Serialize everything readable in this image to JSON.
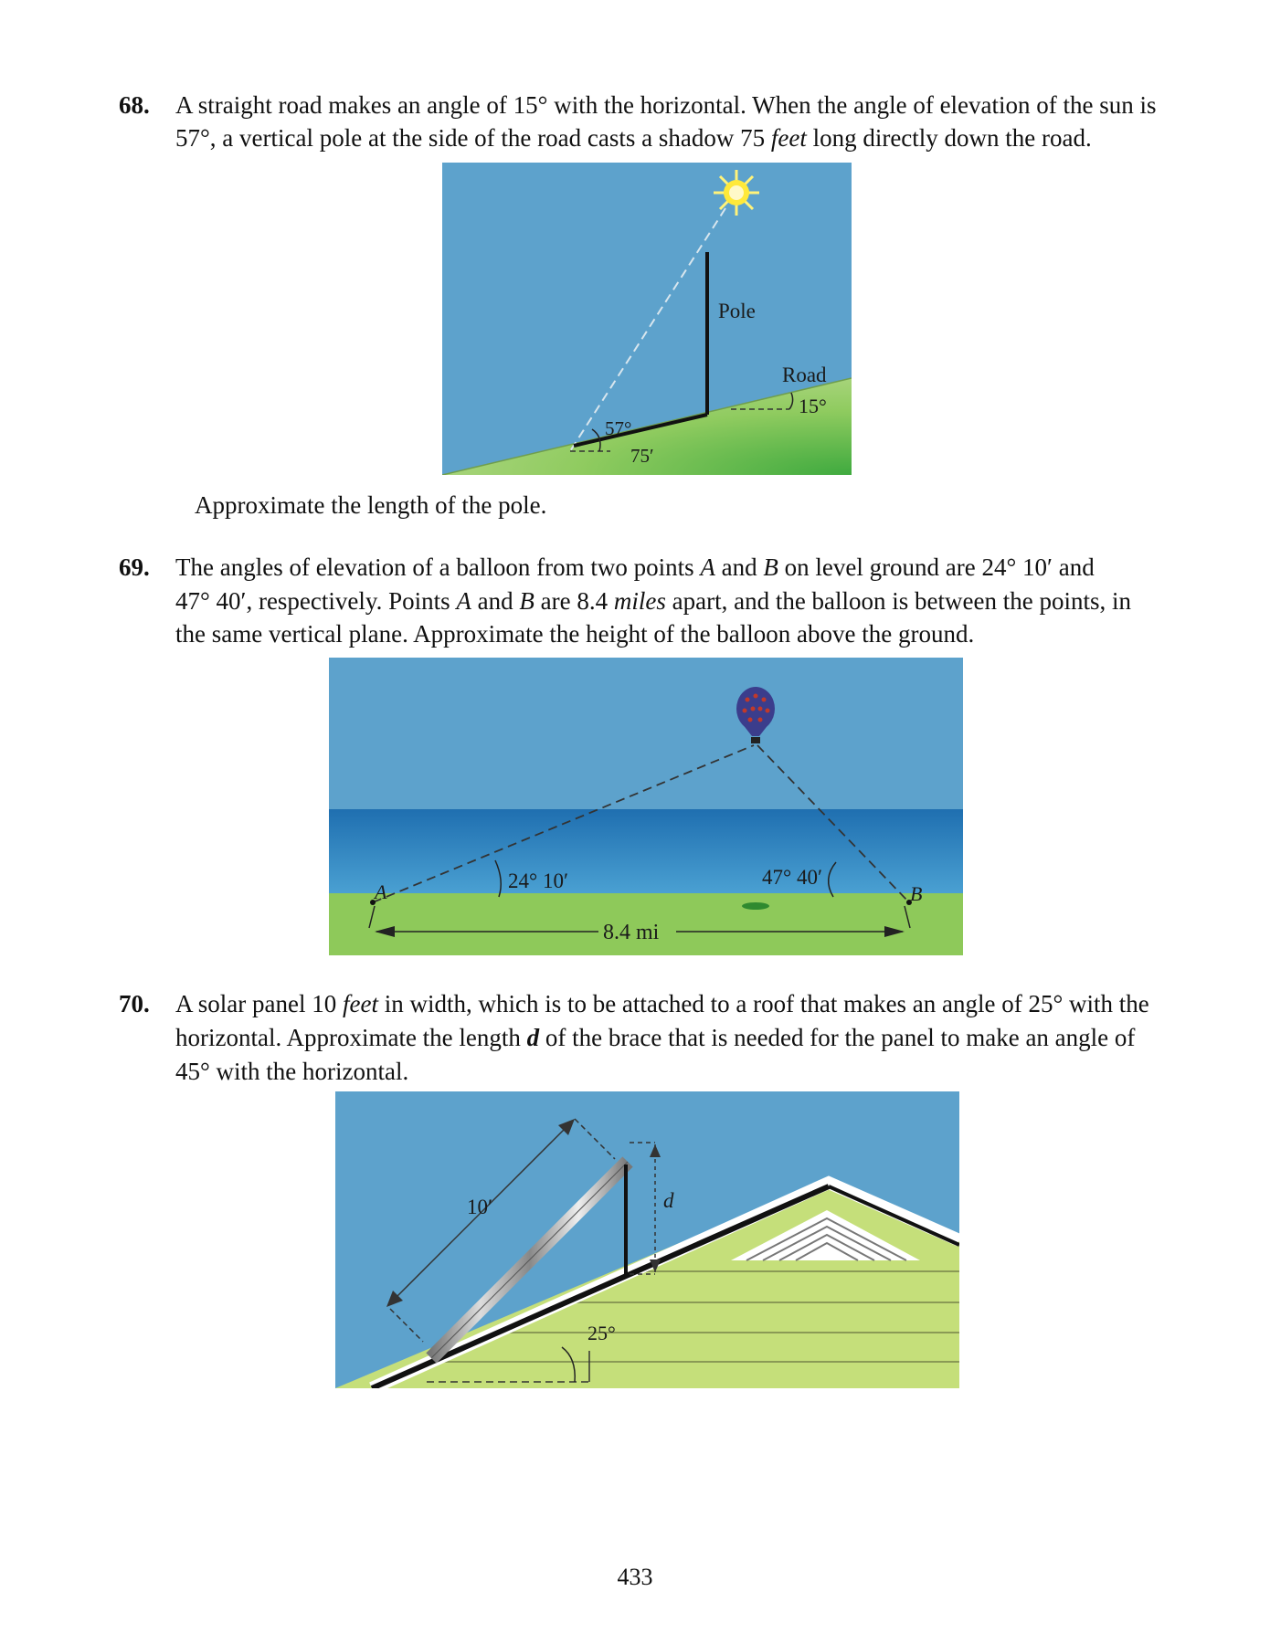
{
  "p68": {
    "number": "68.",
    "line1": "A straight road makes an angle of 15° with the horizontal. When the angle of elevation of the sun is",
    "line2_a": "57°, a vertical pole at the side of the road casts a shadow 75 ",
    "line2_em": "feet",
    "line2_b": " long directly down the road.",
    "figure": {
      "pole": "Pole",
      "road": "Road",
      "road_angle": "15°",
      "sun_angle": "57°",
      "shadow": "75′"
    },
    "question": "Approximate the length of the pole."
  },
  "p69": {
    "number": "69.",
    "line1_a": "The angles of elevation of a balloon from two points ",
    "line1_A": "A",
    "line1_b": " and ",
    "line1_B": "B",
    "line1_c": " on level ground are 24° 10′ and",
    "line2_a": "47° 40′, respectively. Points ",
    "line2_A": "A",
    "line2_b": " and ",
    "line2_B": "B",
    "line2_c": " are 8.4 ",
    "line2_em": "miles",
    "line2_d": " apart, and the balloon is between the points, in",
    "line3": "the same vertical plane. Approximate the height of the balloon above the ground.",
    "figure": {
      "point_a": "A",
      "point_b": "B",
      "angle_a": "24° 10′",
      "angle_b": "47° 40′",
      "distance": "8.4 mi"
    }
  },
  "p70": {
    "number": "70.",
    "line1_a": "A solar panel 10 ",
    "line1_em": "feet",
    "line1_b": " in width, which is to be attached to a roof that makes an angle of 25° with the",
    "line2_a": "horizontal. Approximate the length ",
    "line2_d": "d",
    "line2_b": " of the brace that is needed for the panel to make an angle of",
    "line3": "45° with the horizontal.",
    "figure": {
      "panel_width": "10′",
      "brace": "d",
      "roof_angle": "25°"
    }
  },
  "page_number": "433",
  "colors": {
    "sky": "#5da2cc",
    "grass": "#8ec95a",
    "sea": "#2e86c1",
    "siding": "#c5df7a",
    "sun": "#ffe93a"
  }
}
